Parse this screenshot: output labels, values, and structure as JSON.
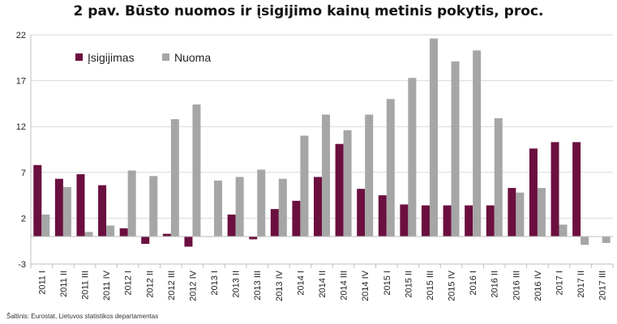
{
  "chart_data": {
    "type": "bar",
    "title": "2 pav. Būsto nuomos ir įsigijimo kainų metinis pokytis, proc.",
    "source": "Šaltinis: Eurostat, Lietuvos statistikos departamentas",
    "ylim": [
      -3,
      22
    ],
    "yticks": [
      "-3",
      "2",
      "7",
      "12",
      "17",
      "22"
    ],
    "grid": true,
    "legend_position": "top-left",
    "categories": [
      "2011 I",
      "2011 II",
      "2011 III",
      "2011 IV",
      "2012 I",
      "2012 II",
      "2012 III",
      "2012 IV",
      "2013 I",
      "2013 II",
      "2013 III",
      "2013 IV",
      "2014 I",
      "2014 II",
      "2014 III",
      "2014 IV",
      "2015 I",
      "2015 II",
      "2015 III",
      "2015 IV",
      "2016 I",
      "2016 II",
      "2016 III",
      "2016 IV",
      "2017 I",
      "2017 II",
      "2017 III"
    ],
    "series": [
      {
        "name": "Įsigijimas",
        "color": "#6b0f3f",
        "values": [
          7.8,
          6.3,
          6.8,
          5.6,
          0.9,
          -0.8,
          0.3,
          -1.1,
          0.0,
          2.4,
          -0.3,
          3.0,
          3.9,
          6.5,
          10.1,
          5.2,
          4.5,
          3.5,
          3.4,
          3.4,
          3.4,
          3.4,
          5.3,
          9.6,
          10.3,
          10.3,
          null
        ]
      },
      {
        "name": "Nuoma",
        "color": "#a6a6a6",
        "values": [
          2.4,
          5.4,
          0.5,
          1.2,
          7.2,
          6.6,
          12.8,
          14.4,
          6.1,
          6.5,
          7.3,
          6.3,
          11.0,
          13.3,
          11.6,
          13.3,
          15.0,
          17.3,
          21.6,
          19.1,
          20.3,
          12.9,
          4.8,
          5.3,
          1.3,
          -0.9,
          -0.7
        ]
      }
    ]
  }
}
